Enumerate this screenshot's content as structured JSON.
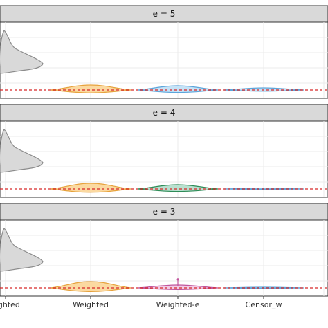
{
  "chart_data": {
    "type": "violin",
    "panels": [
      {
        "strip": "e = 5",
        "violins": [
          {
            "category": "eighted",
            "shape": "tall-skewed",
            "fill": "#d9d9d9",
            "stroke": "#8c8c8c"
          },
          {
            "category": "Weighted",
            "shape": "flat",
            "fill": "#fbd9a0",
            "stroke": "#e6a23c",
            "halfHeight": 7
          },
          {
            "category": "Weighted-e",
            "shape": "flat",
            "fill": "#c6e3f7",
            "stroke": "#5da5da",
            "halfHeight": 6
          },
          {
            "category": "Censor_w",
            "shape": "flat",
            "fill": "#c6e3f7",
            "stroke": "#5da5da",
            "halfHeight": 3
          }
        ]
      },
      {
        "strip": "e = 4",
        "violins": [
          {
            "category": "eighted",
            "shape": "tall-skewed",
            "fill": "#d9d9d9",
            "stroke": "#8c8c8c"
          },
          {
            "category": "Weighted",
            "shape": "flat",
            "fill": "#fbd9a0",
            "stroke": "#e6a23c",
            "halfHeight": 8
          },
          {
            "category": "Weighted-e",
            "shape": "flat",
            "fill": "#b9e0cf",
            "stroke": "#2e8b57",
            "halfHeight": 6
          },
          {
            "category": "Censor_w",
            "shape": "line",
            "fill": "#c6e3f7",
            "stroke": "#5da5da",
            "halfHeight": 1
          }
        ]
      },
      {
        "strip": "e = 3",
        "violins": [
          {
            "category": "eighted",
            "shape": "tall-skewed",
            "fill": "#d9d9d9",
            "stroke": "#8c8c8c"
          },
          {
            "category": "Weighted",
            "shape": "flat",
            "fill": "#fbd9a0",
            "stroke": "#e6a23c",
            "halfHeight": 9
          },
          {
            "category": "Weighted-e",
            "shape": "flat-spike",
            "fill": "#f2c9e6",
            "stroke": "#c0569d",
            "halfHeight": 4
          },
          {
            "category": "Censor_w",
            "shape": "line",
            "fill": "#c6e3f7",
            "stroke": "#5da5da",
            "halfHeight": 1
          }
        ]
      }
    ],
    "x_tick_labels": [
      "eighted",
      "Weighted",
      "Weighted-e",
      "Censor_w"
    ],
    "reference_line": {
      "style": "dashed",
      "color": "#d62728"
    },
    "grid": true,
    "legend": "none"
  }
}
